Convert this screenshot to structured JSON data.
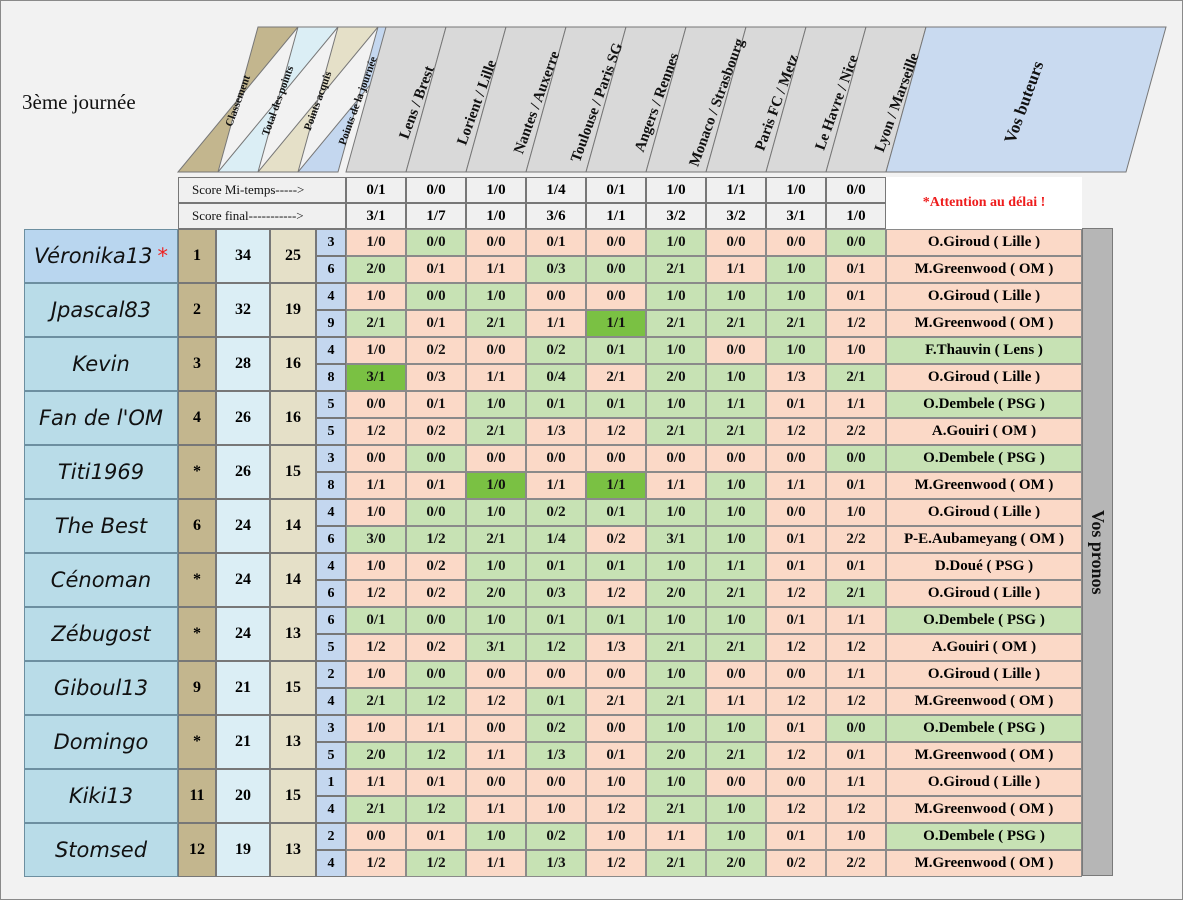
{
  "title": "3ème journée",
  "headers": {
    "classement": "Classement",
    "total": "Total des points",
    "acquis": "Points acquis",
    "journee": "Points de la journée",
    "buteurs": "Vos buteurs",
    "pronos": "Vos pronos"
  },
  "matches": [
    "Lens / Brest",
    "Lorient / Lille",
    "Nantes / Auxerre",
    "Toulouse / Paris SG",
    "Angers / Rennes",
    "Monaco / Strasbourg",
    "Paris FC / Metz",
    "Le Havre / Nice",
    "Lyon / Marseille"
  ],
  "score_labels": {
    "mi_temps": "Score Mi-temps----->",
    "final": "Score final----------->"
  },
  "scores_mi_temps": [
    "0/1",
    "0/0",
    "1/0",
    "1/4",
    "0/1",
    "1/0",
    "1/1",
    "1/0",
    "0/0"
  ],
  "scores_final": [
    "3/1",
    "1/7",
    "1/0",
    "3/6",
    "1/1",
    "3/2",
    "3/2",
    "3/1",
    "1/0"
  ],
  "attention": "*Attention au délai !",
  "colors": {
    "wrong": "#fbd9c7",
    "correct_result": "#c7e2b4",
    "exact_score": "#7ac143",
    "accent_star": "#ee2222",
    "attention": "#ee1c1c"
  },
  "players": [
    {
      "name": "Véronika13",
      "star": "*",
      "rank": "1",
      "total": "34",
      "acquis": "25",
      "journee": [
        "3",
        "6"
      ],
      "pronos": [
        [
          "1/0",
          "0/0",
          "0/0",
          "0/1",
          "0/0",
          "1/0",
          "0/0",
          "0/0",
          "0/0"
        ],
        [
          "2/0",
          "0/1",
          "1/1",
          "0/3",
          "0/0",
          "2/1",
          "1/1",
          "1/0",
          "0/1"
        ]
      ],
      "status": [
        [
          "p",
          "g",
          "p",
          "p",
          "p",
          "g",
          "p",
          "p",
          "g"
        ],
        [
          "g",
          "p",
          "p",
          "g",
          "g",
          "g",
          "p",
          "g",
          "p"
        ]
      ],
      "buteurs": [
        "O.Giroud ( Lille )",
        "M.Greenwood ( OM )"
      ],
      "bstatus": [
        "p",
        "p"
      ]
    },
    {
      "name": "Jpascal83",
      "rank": "2",
      "total": "32",
      "acquis": "19",
      "journee": [
        "4",
        "9"
      ],
      "pronos": [
        [
          "1/0",
          "0/0",
          "1/0",
          "0/0",
          "0/0",
          "1/0",
          "1/0",
          "1/0",
          "0/1"
        ],
        [
          "2/1",
          "0/1",
          "2/1",
          "1/1",
          "1/1",
          "2/1",
          "2/1",
          "2/1",
          "1/2"
        ]
      ],
      "status": [
        [
          "p",
          "g",
          "g",
          "p",
          "p",
          "g",
          "g",
          "g",
          "p"
        ],
        [
          "g",
          "p",
          "g",
          "p",
          "d",
          "g",
          "g",
          "g",
          "p"
        ]
      ],
      "buteurs": [
        "O.Giroud ( Lille )",
        "M.Greenwood ( OM )"
      ],
      "bstatus": [
        "p",
        "p"
      ]
    },
    {
      "name": "Kevin",
      "rank": "3",
      "total": "28",
      "acquis": "16",
      "journee": [
        "4",
        "8"
      ],
      "pronos": [
        [
          "1/0",
          "0/2",
          "0/0",
          "0/2",
          "0/1",
          "1/0",
          "0/0",
          "1/0",
          "1/0"
        ],
        [
          "3/1",
          "0/3",
          "1/1",
          "0/4",
          "2/1",
          "2/0",
          "1/0",
          "1/3",
          "2/1"
        ]
      ],
      "status": [
        [
          "p",
          "p",
          "p",
          "g",
          "g",
          "g",
          "p",
          "g",
          "p"
        ],
        [
          "d",
          "p",
          "p",
          "g",
          "p",
          "g",
          "g",
          "p",
          "g"
        ]
      ],
      "buteurs": [
        "F.Thauvin ( Lens )",
        "O.Giroud ( Lille )"
      ],
      "bstatus": [
        "g",
        "p"
      ]
    },
    {
      "name": "Fan de l'OM",
      "rank": "4",
      "total": "26",
      "acquis": "16",
      "journee": [
        "5",
        "5"
      ],
      "pronos": [
        [
          "0/0",
          "0/1",
          "1/0",
          "0/1",
          "0/1",
          "1/0",
          "1/1",
          "0/1",
          "1/1"
        ],
        [
          "1/2",
          "0/2",
          "2/1",
          "1/3",
          "1/2",
          "2/1",
          "2/1",
          "1/2",
          "2/2"
        ]
      ],
      "status": [
        [
          "p",
          "p",
          "g",
          "g",
          "g",
          "g",
          "g",
          "p",
          "p"
        ],
        [
          "p",
          "p",
          "g",
          "p",
          "p",
          "g",
          "g",
          "p",
          "p"
        ]
      ],
      "buteurs": [
        "O.Dembele ( PSG )",
        "A.Gouiri ( OM )"
      ],
      "bstatus": [
        "g",
        "p"
      ]
    },
    {
      "name": "Titi1969",
      "rank": "*",
      "total": "26",
      "acquis": "15",
      "journee": [
        "3",
        "8"
      ],
      "pronos": [
        [
          "0/0",
          "0/0",
          "0/0",
          "0/0",
          "0/0",
          "0/0",
          "0/0",
          "0/0",
          "0/0"
        ],
        [
          "1/1",
          "0/1",
          "1/0",
          "1/1",
          "1/1",
          "1/1",
          "1/0",
          "1/1",
          "0/1"
        ]
      ],
      "status": [
        [
          "p",
          "g",
          "p",
          "p",
          "p",
          "p",
          "p",
          "p",
          "g"
        ],
        [
          "p",
          "p",
          "d",
          "p",
          "d",
          "p",
          "g",
          "p",
          "p"
        ]
      ],
      "buteurs": [
        "O.Dembele ( PSG )",
        "M.Greenwood ( OM )"
      ],
      "bstatus": [
        "g",
        "p"
      ]
    },
    {
      "name": "The Best",
      "rank": "6",
      "total": "24",
      "acquis": "14",
      "journee": [
        "4",
        "6"
      ],
      "pronos": [
        [
          "1/0",
          "0/0",
          "1/0",
          "0/2",
          "0/1",
          "1/0",
          "1/0",
          "0/0",
          "1/0"
        ],
        [
          "3/0",
          "1/2",
          "2/1",
          "1/4",
          "0/2",
          "3/1",
          "1/0",
          "0/1",
          "2/2"
        ]
      ],
      "status": [
        [
          "p",
          "g",
          "g",
          "g",
          "g",
          "g",
          "g",
          "p",
          "p"
        ],
        [
          "g",
          "g",
          "g",
          "g",
          "p",
          "g",
          "g",
          "p",
          "p"
        ]
      ],
      "buteurs": [
        "O.Giroud ( Lille )",
        "P-E.Aubameyang ( OM )"
      ],
      "bstatus": [
        "p",
        "p"
      ]
    },
    {
      "name": "Cénoman",
      "rank": "*",
      "total": "24",
      "acquis": "14",
      "journee": [
        "4",
        "6"
      ],
      "pronos": [
        [
          "1/0",
          "0/2",
          "1/0",
          "0/1",
          "0/1",
          "1/0",
          "1/1",
          "0/1",
          "0/1"
        ],
        [
          "1/2",
          "0/2",
          "2/0",
          "0/3",
          "1/2",
          "2/0",
          "2/1",
          "1/2",
          "2/1"
        ]
      ],
      "status": [
        [
          "p",
          "p",
          "g",
          "g",
          "g",
          "g",
          "g",
          "p",
          "p"
        ],
        [
          "p",
          "p",
          "g",
          "g",
          "p",
          "g",
          "g",
          "p",
          "g"
        ]
      ],
      "buteurs": [
        "D.Doué ( PSG )",
        "O.Giroud ( Lille )"
      ],
      "bstatus": [
        "p",
        "p"
      ]
    },
    {
      "name": "Zébugost",
      "rank": "*",
      "total": "24",
      "acquis": "13",
      "journee": [
        "6",
        "5"
      ],
      "pronos": [
        [
          "0/1",
          "0/0",
          "1/0",
          "0/1",
          "0/1",
          "1/0",
          "1/0",
          "0/1",
          "1/1"
        ],
        [
          "1/2",
          "0/2",
          "3/1",
          "1/2",
          "1/3",
          "2/1",
          "2/1",
          "1/2",
          "1/2"
        ]
      ],
      "status": [
        [
          "g",
          "g",
          "g",
          "g",
          "g",
          "g",
          "g",
          "p",
          "p"
        ],
        [
          "p",
          "p",
          "g",
          "g",
          "p",
          "g",
          "g",
          "p",
          "p"
        ]
      ],
      "buteurs": [
        "O.Dembele ( PSG )",
        "A.Gouiri ( OM )"
      ],
      "bstatus": [
        "g",
        "p"
      ]
    },
    {
      "name": "Giboul13",
      "rank": "9",
      "total": "21",
      "acquis": "15",
      "journee": [
        "2",
        "4"
      ],
      "pronos": [
        [
          "1/0",
          "0/0",
          "0/0",
          "0/0",
          "0/0",
          "1/0",
          "0/0",
          "0/0",
          "1/1"
        ],
        [
          "2/1",
          "1/2",
          "1/2",
          "0/1",
          "2/1",
          "2/1",
          "1/1",
          "1/2",
          "1/2"
        ]
      ],
      "status": [
        [
          "p",
          "g",
          "p",
          "p",
          "p",
          "g",
          "p",
          "p",
          "p"
        ],
        [
          "g",
          "g",
          "p",
          "g",
          "p",
          "g",
          "p",
          "p",
          "p"
        ]
      ],
      "buteurs": [
        "O.Giroud ( Lille )",
        "M.Greenwood ( OM )"
      ],
      "bstatus": [
        "p",
        "p"
      ]
    },
    {
      "name": "Domingo",
      "rank": "*",
      "total": "21",
      "acquis": "13",
      "journee": [
        "3",
        "5"
      ],
      "pronos": [
        [
          "1/0",
          "1/1",
          "0/0",
          "0/2",
          "0/0",
          "1/0",
          "1/0",
          "0/1",
          "0/0"
        ],
        [
          "2/0",
          "1/2",
          "1/1",
          "1/3",
          "0/1",
          "2/0",
          "2/1",
          "1/2",
          "0/1"
        ]
      ],
      "status": [
        [
          "p",
          "p",
          "p",
          "g",
          "p",
          "g",
          "g",
          "p",
          "g"
        ],
        [
          "g",
          "g",
          "p",
          "g",
          "p",
          "g",
          "g",
          "p",
          "p"
        ]
      ],
      "buteurs": [
        "O.Dembele ( PSG )",
        "M.Greenwood ( OM )"
      ],
      "bstatus": [
        "g",
        "p"
      ]
    },
    {
      "name": "Kiki13",
      "rank": "11",
      "total": "20",
      "acquis": "15",
      "journee": [
        "1",
        "4"
      ],
      "pronos": [
        [
          "1/1",
          "0/1",
          "0/0",
          "0/0",
          "1/0",
          "1/0",
          "0/0",
          "0/0",
          "1/1"
        ],
        [
          "2/1",
          "1/2",
          "1/1",
          "1/0",
          "1/2",
          "2/1",
          "1/0",
          "1/2",
          "1/2"
        ]
      ],
      "status": [
        [
          "p",
          "p",
          "p",
          "p",
          "p",
          "g",
          "p",
          "p",
          "p"
        ],
        [
          "g",
          "g",
          "p",
          "p",
          "p",
          "g",
          "g",
          "p",
          "p"
        ]
      ],
      "buteurs": [
        "O.Giroud ( Lille )",
        "M.Greenwood ( OM )"
      ],
      "bstatus": [
        "p",
        "p"
      ]
    },
    {
      "name": "Stomsed",
      "rank": "12",
      "total": "19",
      "acquis": "13",
      "journee": [
        "2",
        "4"
      ],
      "pronos": [
        [
          "0/0",
          "0/1",
          "1/0",
          "0/2",
          "1/0",
          "1/1",
          "1/0",
          "0/1",
          "1/0"
        ],
        [
          "1/2",
          "1/2",
          "1/1",
          "1/3",
          "1/2",
          "2/1",
          "2/0",
          "0/2",
          "2/2"
        ]
      ],
      "status": [
        [
          "p",
          "p",
          "g",
          "g",
          "p",
          "p",
          "g",
          "p",
          "p"
        ],
        [
          "p",
          "g",
          "p",
          "g",
          "p",
          "g",
          "g",
          "p",
          "p"
        ]
      ],
      "buteurs": [
        "O.Dembele ( PSG )",
        "M.Greenwood ( OM )"
      ],
      "bstatus": [
        "g",
        "p"
      ]
    }
  ]
}
